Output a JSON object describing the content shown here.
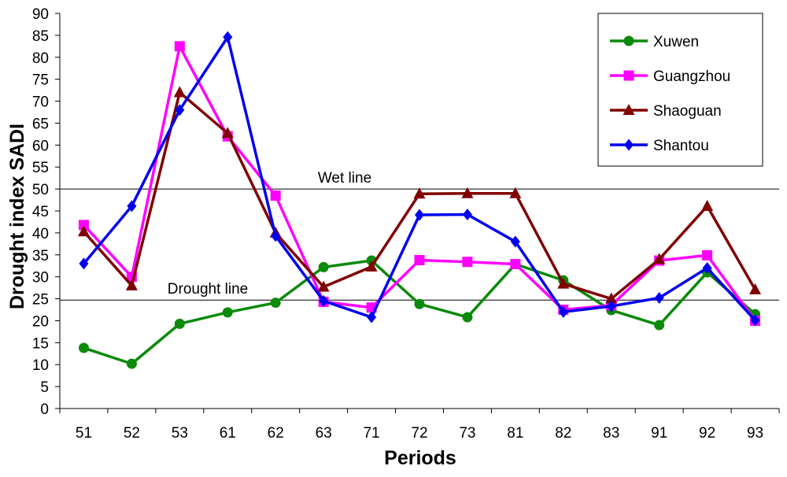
{
  "chart_data": {
    "type": "line",
    "title": "",
    "xlabel": "Periods",
    "ylabel": "Drought index SADI",
    "ylim": [
      0,
      90
    ],
    "y_ticks": [
      0,
      5,
      10,
      15,
      20,
      25,
      30,
      35,
      40,
      45,
      50,
      55,
      60,
      65,
      70,
      75,
      80,
      85,
      90
    ],
    "categories": [
      "51",
      "52",
      "53",
      "61",
      "62",
      "63",
      "71",
      "72",
      "73",
      "81",
      "82",
      "83",
      "91",
      "92",
      "93"
    ],
    "grid": false,
    "legend_position": "top-right",
    "reference_lines": [
      {
        "label": "Wet line",
        "value": 50
      },
      {
        "label": "Drought  line",
        "value": 24.7
      }
    ],
    "series": [
      {
        "name": "Xuwen",
        "color": "#0b8a0b",
        "marker": "circle",
        "values": [
          13.8,
          10.2,
          19.3,
          21.9,
          24.1,
          32.2,
          33.7,
          23.8,
          20.8,
          32.9,
          29.2,
          22.4,
          19.0,
          31.0,
          21.5
        ]
      },
      {
        "name": "Guangzhou",
        "color": "#ff00ff",
        "marker": "square",
        "values": [
          41.8,
          30.0,
          82.5,
          62.0,
          48.5,
          24.3,
          23.0,
          33.8,
          33.4,
          32.9,
          22.5,
          23.5,
          33.7,
          34.9,
          20.0
        ]
      },
      {
        "name": "Shaoguan",
        "color": "#800000",
        "marker": "triangle",
        "values": [
          40.3,
          28.0,
          72.0,
          62.7,
          40.0,
          27.7,
          32.3,
          48.9,
          49.0,
          49.0,
          28.4,
          25.0,
          34.0,
          46.1,
          27.1
        ]
      },
      {
        "name": "Shantou",
        "color": "#0000ee",
        "marker": "diamond",
        "values": [
          33.0,
          46.1,
          68.0,
          84.6,
          39.3,
          24.5,
          20.8,
          44.1,
          44.2,
          38.0,
          22.0,
          23.3,
          25.2,
          32.0,
          20.1
        ]
      }
    ]
  }
}
